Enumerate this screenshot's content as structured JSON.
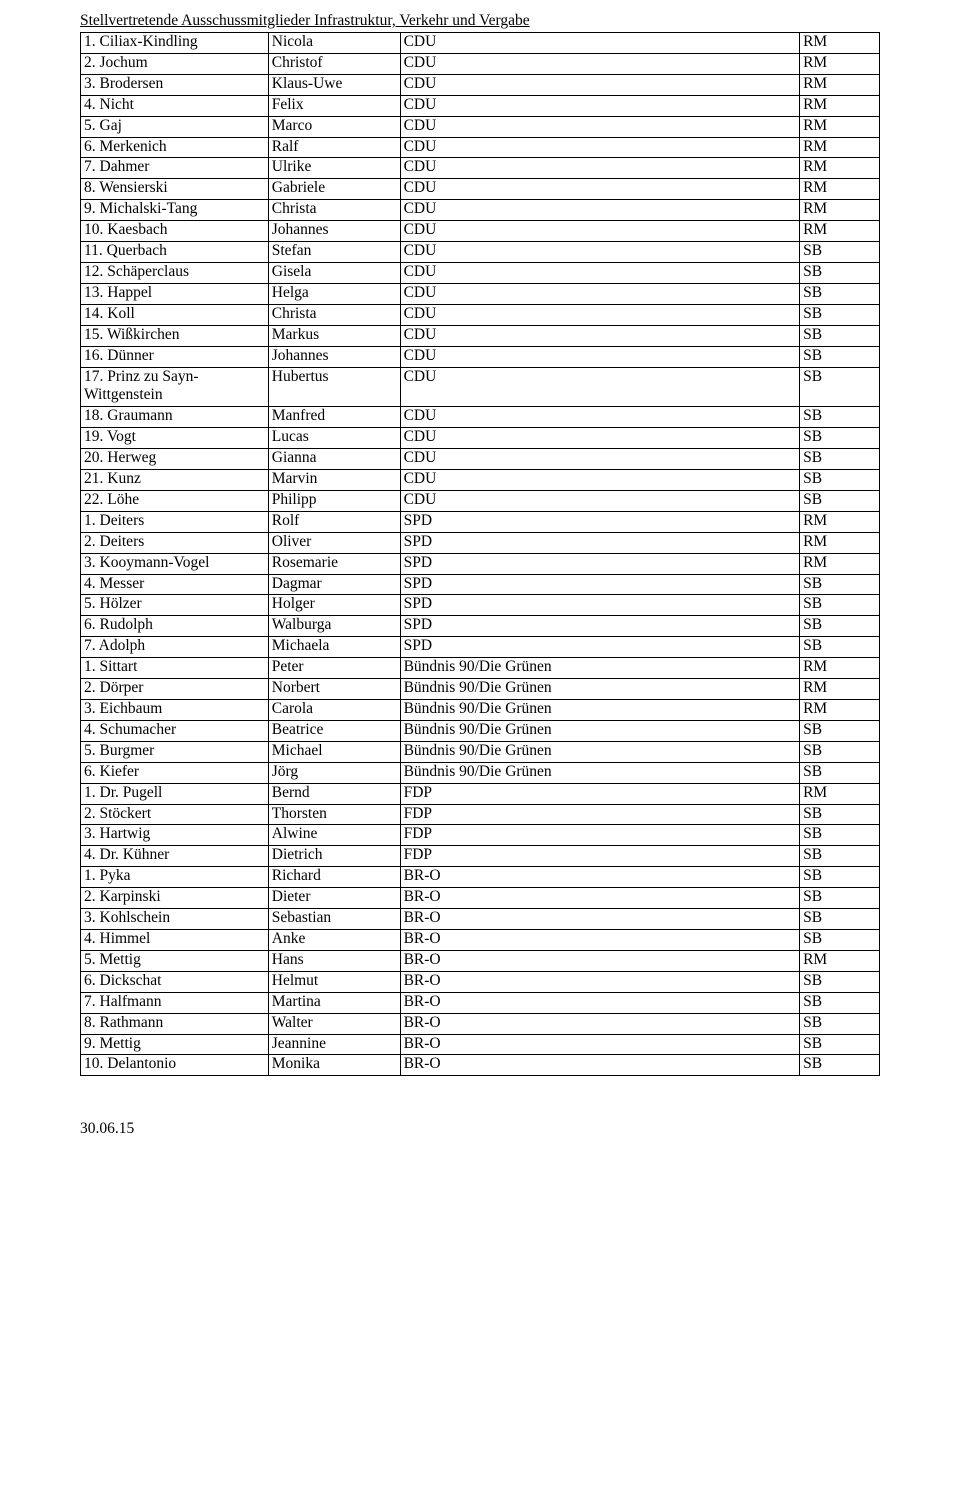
{
  "title": "Stellvertretende Ausschussmitglieder Infrastruktur, Verkehr und Vergabe",
  "footer": "30.06.15",
  "table": {
    "columns": [
      "num_name",
      "first_name",
      "party",
      "role"
    ],
    "rows": [
      [
        "1. Ciliax-Kindling",
        "Nicola",
        "CDU",
        "RM"
      ],
      [
        "2. Jochum",
        "Christof",
        "CDU",
        "RM"
      ],
      [
        "3. Brodersen",
        "Klaus-Uwe",
        "CDU",
        "RM"
      ],
      [
        "4. Nicht",
        "Felix",
        "CDU",
        "RM"
      ],
      [
        "5. Gaj",
        "Marco",
        "CDU",
        "RM"
      ],
      [
        "6. Merkenich",
        "Ralf",
        "CDU",
        "RM"
      ],
      [
        "7. Dahmer",
        "Ulrike",
        "CDU",
        "RM"
      ],
      [
        "8. Wensierski",
        "Gabriele",
        "CDU",
        "RM"
      ],
      [
        "9. Michalski-Tang",
        "Christa",
        "CDU",
        "RM"
      ],
      [
        "10. Kaesbach",
        "Johannes",
        "CDU",
        "RM"
      ],
      [
        "11. Querbach",
        "Stefan",
        "CDU",
        "SB"
      ],
      [
        "12. Schäperclaus",
        "Gisela",
        "CDU",
        "SB"
      ],
      [
        "13. Happel",
        "Helga",
        "CDU",
        "SB"
      ],
      [
        "14. Koll",
        "Christa",
        "CDU",
        "SB"
      ],
      [
        "15. Wißkirchen",
        "Markus",
        "CDU",
        "SB"
      ],
      [
        "16. Dünner",
        "Johannes",
        "CDU",
        "SB"
      ],
      [
        "17. Prinz zu Sayn-Wittgenstein",
        "Hubertus",
        "CDU",
        "SB"
      ],
      [
        "18. Graumann",
        "Manfred",
        "CDU",
        "SB"
      ],
      [
        "19. Vogt",
        "Lucas",
        "CDU",
        "SB"
      ],
      [
        "20. Herweg",
        "Gianna",
        "CDU",
        "SB"
      ],
      [
        "21. Kunz",
        "Marvin",
        "CDU",
        "SB"
      ],
      [
        "22. Löhe",
        "Philipp",
        "CDU",
        "SB"
      ],
      [
        "1. Deiters",
        "Rolf",
        "SPD",
        "RM"
      ],
      [
        "2. Deiters",
        "Oliver",
        "SPD",
        "RM"
      ],
      [
        "3. Kooymann-Vogel",
        "Rosemarie",
        "SPD",
        "RM"
      ],
      [
        "4. Messer",
        "Dagmar",
        "SPD",
        "SB"
      ],
      [
        "5. Hölzer",
        "Holger",
        "SPD",
        "SB"
      ],
      [
        "6. Rudolph",
        "Walburga",
        "SPD",
        "SB"
      ],
      [
        "7. Adolph",
        "Michaela",
        "SPD",
        "SB"
      ],
      [
        "1. Sittart",
        "Peter",
        "Bündnis 90/Die Grünen",
        "RM"
      ],
      [
        "2. Dörper",
        "Norbert",
        "Bündnis 90/Die Grünen",
        "RM"
      ],
      [
        "3. Eichbaum",
        "Carola",
        "Bündnis 90/Die Grünen",
        "RM"
      ],
      [
        "4. Schumacher",
        "Beatrice",
        "Bündnis 90/Die Grünen",
        "SB"
      ],
      [
        "5. Burgmer",
        "Michael",
        "Bündnis 90/Die Grünen",
        "SB"
      ],
      [
        "6. Kiefer",
        "Jörg",
        "Bündnis 90/Die Grünen",
        "SB"
      ],
      [
        "1. Dr. Pugell",
        "Bernd",
        "FDP",
        "RM"
      ],
      [
        "2. Stöckert",
        "Thorsten",
        "FDP",
        "SB"
      ],
      [
        "3. Hartwig",
        "Alwine",
        "FDP",
        "SB"
      ],
      [
        "4. Dr. Kühner",
        "Dietrich",
        "FDP",
        "SB"
      ],
      [
        "1. Pyka",
        "Richard",
        "BR-O",
        "SB"
      ],
      [
        "2. Karpinski",
        "Dieter",
        "BR-O",
        "SB"
      ],
      [
        "3. Kohlschein",
        "Sebastian",
        "BR-O",
        "SB"
      ],
      [
        "4. Himmel",
        "Anke",
        "BR-O",
        "SB"
      ],
      [
        "5. Mettig",
        "Hans",
        "BR-O",
        "RM"
      ],
      [
        "6. Dickschat",
        "Helmut",
        "BR-O",
        "SB"
      ],
      [
        "7. Halfmann",
        "Martina",
        "BR-O",
        "SB"
      ],
      [
        "8. Rathmann",
        "Walter",
        "BR-O",
        "SB"
      ],
      [
        "9. Mettig",
        "Jeannine",
        "BR-O",
        "SB"
      ],
      [
        "10. Delantonio",
        "Monika",
        "BR-O",
        "SB"
      ]
    ]
  }
}
